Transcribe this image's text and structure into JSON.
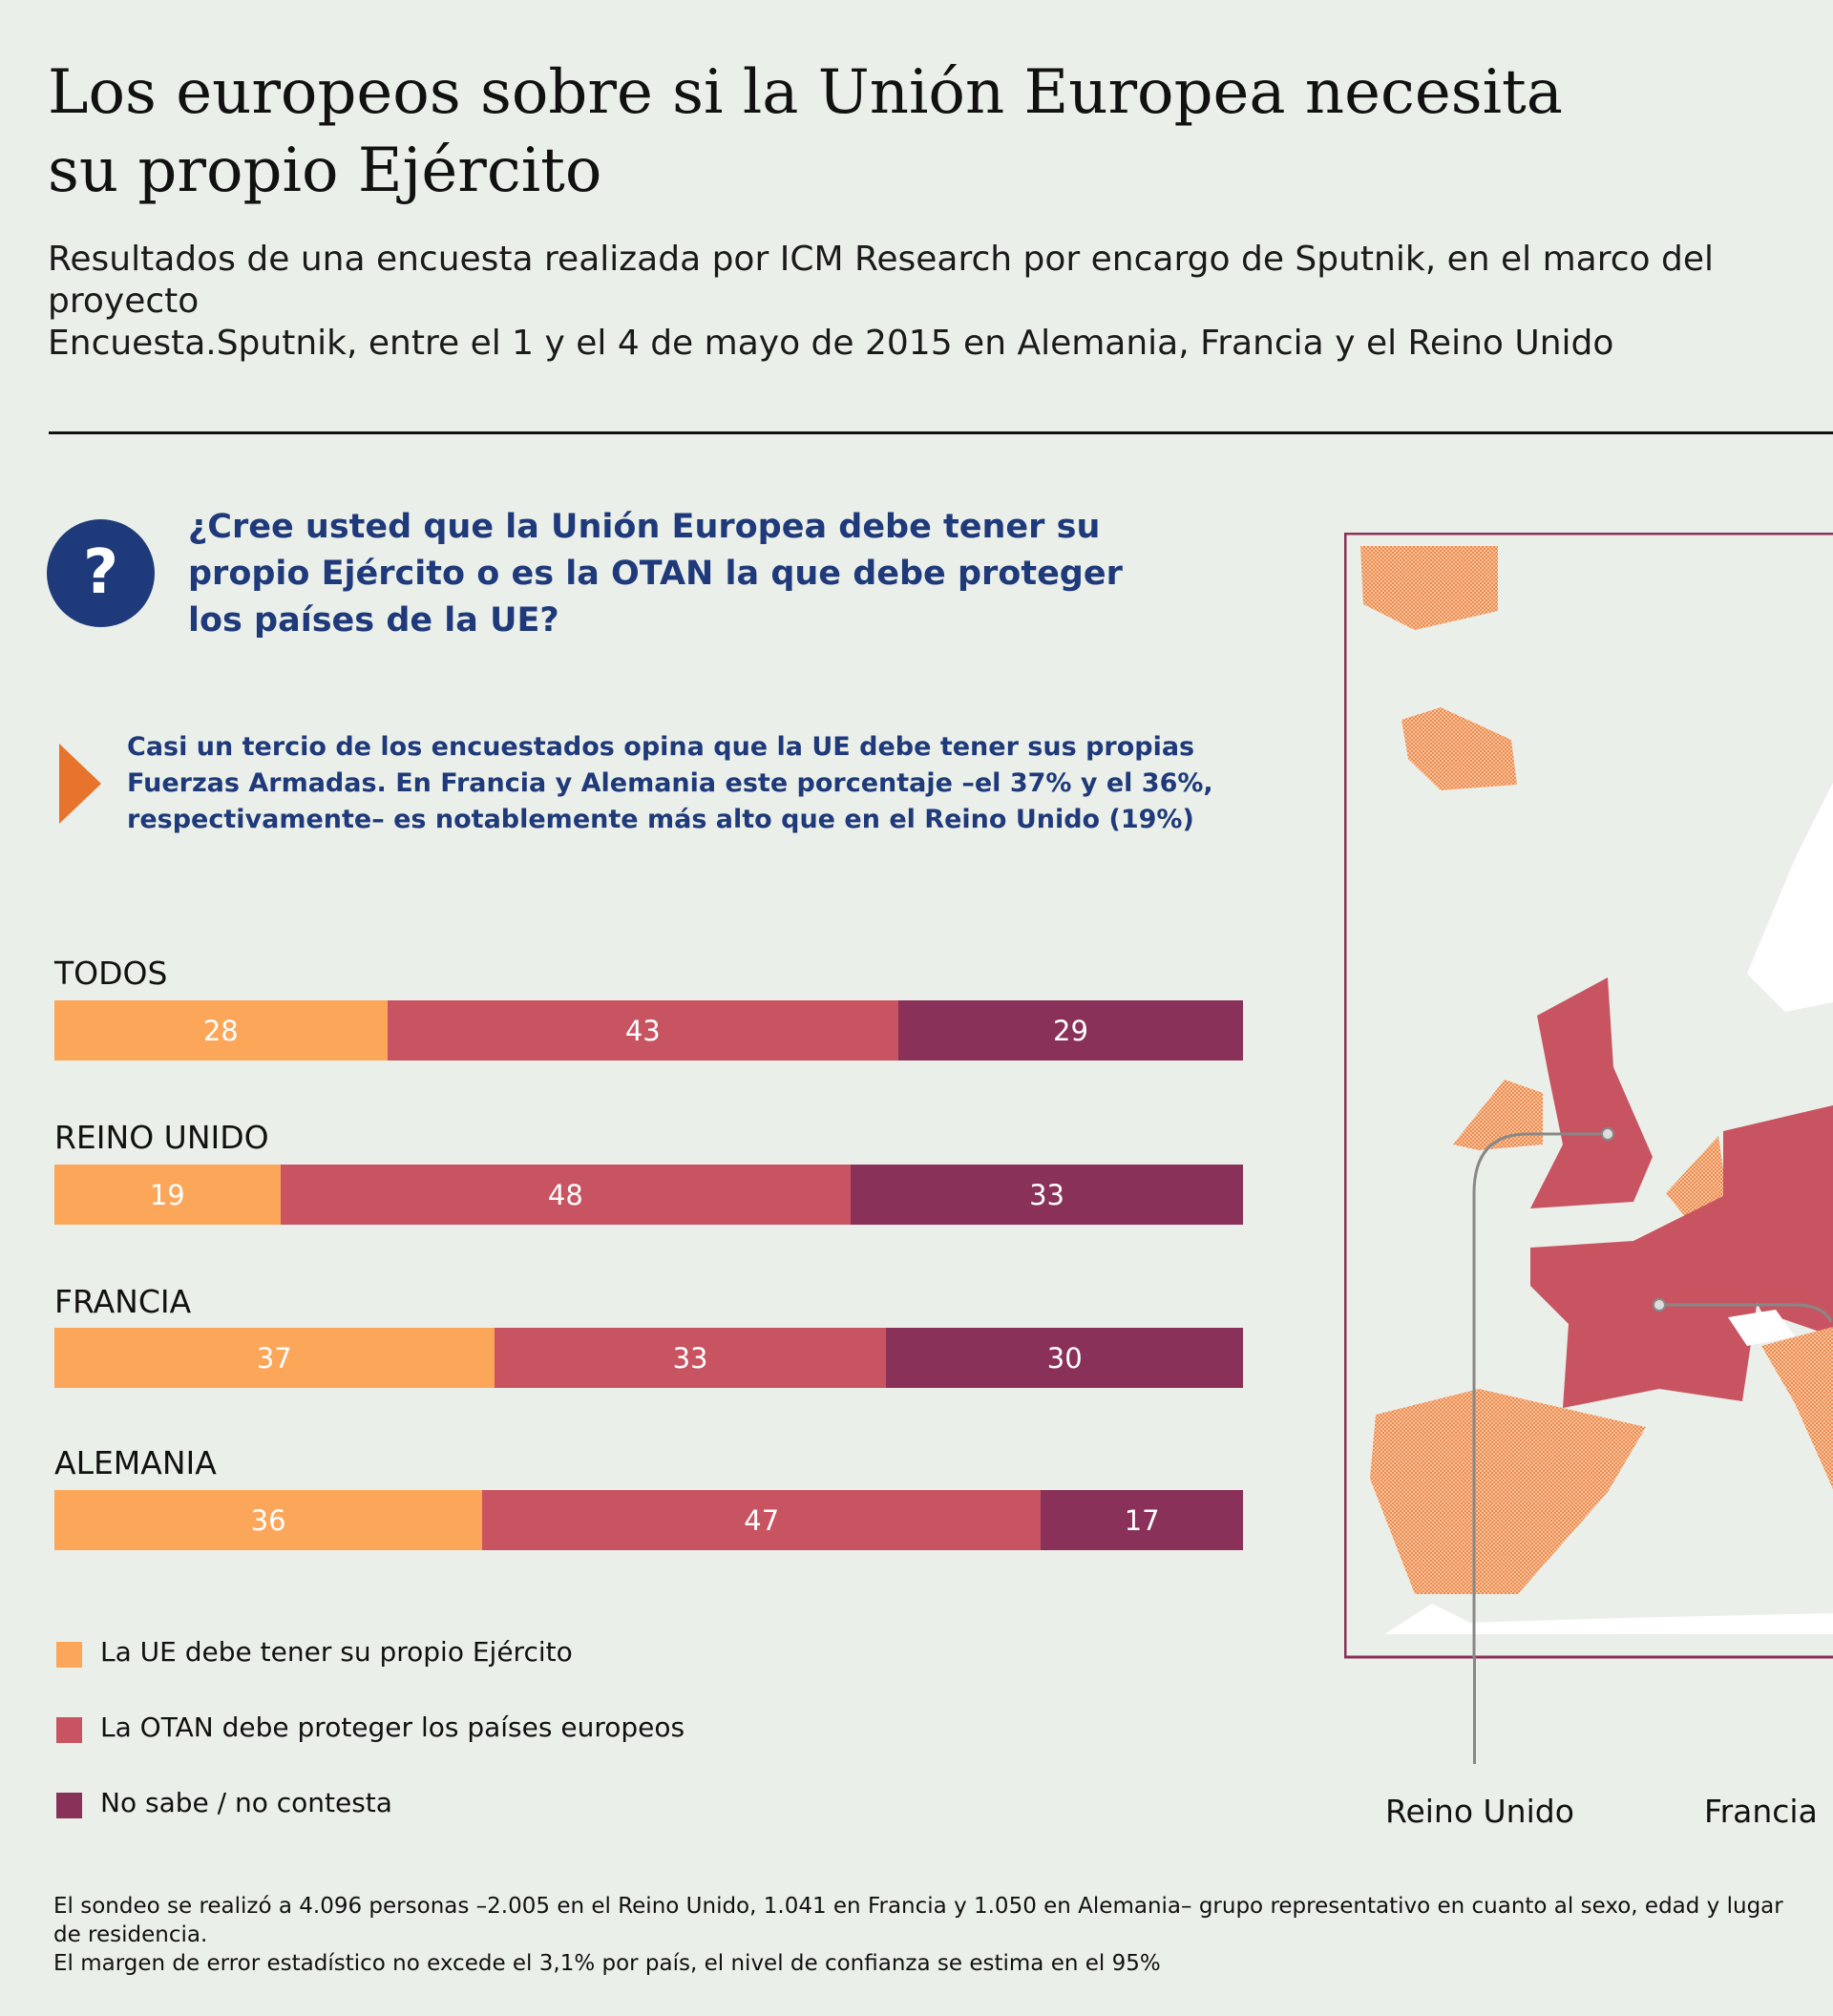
{
  "header": {
    "title_line1": "Los europeos sobre si la Unión Europea necesita",
    "title_line2": "su propio Ejército",
    "subtitle_line1": "Resultados de una encuesta realizada por ICM Research por encargo de Sputnik, en el marco del proyecto",
    "subtitle_line2": "Encuesta.Sputnik, entre el 1 y el 4 de mayo de 2015 en Alemania, Francia y el Reino Unido"
  },
  "question": {
    "icon": "question-mark-icon",
    "icon_text": "?",
    "text": "¿Cree usted que la Unión Europea debe tener su propio Ejército o es la OTAN la que debe proteger los países de la UE?"
  },
  "summary": {
    "icon": "triangle-arrow-icon",
    "text": "Casi un tercio de los encuestados opina que la UE debe tener sus propias Fuerzas Armadas. En Francia y Alemania este porcentaje –el 37% y el 36%, respectivamente– es notablemente más alto que en el Reino Unido (19%)"
  },
  "colors": {
    "background": "#ebefe9",
    "accent_blue": "#1f3a7a",
    "arrow_orange": "#e8732c",
    "map_border": "#8a3159"
  },
  "chart_data": {
    "type": "bar",
    "orientation": "horizontal",
    "stacked": true,
    "unit": "%",
    "categories": [
      "TODOS",
      "REINO UNIDO",
      "FRANCIA",
      "ALEMANIA"
    ],
    "series": [
      {
        "name": "La UE debe tener su propio Ejército",
        "color": "#fca65a",
        "values": [
          28,
          19,
          37,
          36
        ]
      },
      {
        "name": "La OTAN debe proteger los países europeos",
        "color": "#c85462",
        "values": [
          43,
          48,
          33,
          47
        ]
      },
      {
        "name": "No sabe / no contesta",
        "color": "#8a3159",
        "values": [
          29,
          33,
          30,
          17
        ]
      }
    ],
    "legend_position": "bottom-left",
    "grid": false
  },
  "map": {
    "labels": [
      "Reino Unido",
      "Francia"
    ],
    "highlight_color": "#c85462",
    "other_color": "#f4a26a"
  },
  "footnote": {
    "line1": "El sondeo se realizó a 4.096 personas –2.005 en el Reino Unido, 1.041 en Francia y 1.050 en Alemania– grupo representativo en cuanto al sexo, edad y lugar de residencia.",
    "line2": "El margen de error estadístico no excede el 3,1% por país, el nivel de confianza se estima en el 95%"
  }
}
